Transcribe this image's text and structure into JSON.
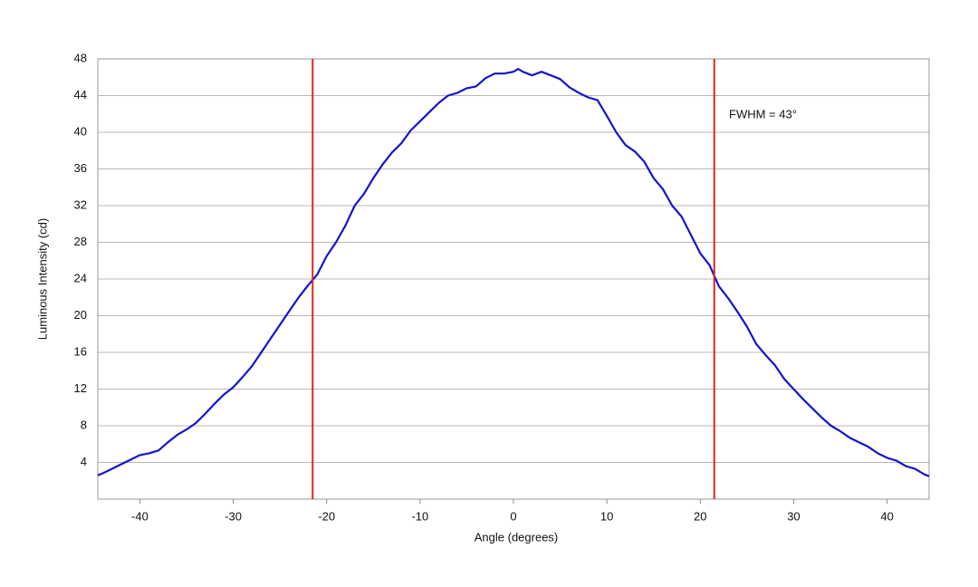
{
  "chart_data": {
    "type": "line",
    "x_label": "Angle (degrees)",
    "y_label": "Luminous Intensity (cd)",
    "annotation": "FWHM = 43°",
    "xlim": [
      -44.5,
      44.5
    ],
    "xticks": [
      -40,
      -30,
      -20,
      -10,
      0,
      10,
      20,
      30,
      40
    ],
    "ylim": [
      0,
      48
    ],
    "yticks": [
      4,
      8,
      12,
      16,
      20,
      24,
      28,
      32,
      36,
      40,
      44,
      48
    ],
    "grid": true,
    "vlines": [
      -21.5,
      21.5
    ],
    "vline_color": "#d42a1e",
    "x": [
      -44.5,
      -44,
      -43,
      -42,
      -41,
      -40,
      -39,
      -38,
      -37,
      -36,
      -35,
      -34,
      -33,
      -32,
      -31,
      -30,
      -29,
      -28,
      -27,
      -26,
      -25,
      -24,
      -23,
      -22,
      -21,
      -20,
      -19,
      -18,
      -17,
      -16,
      -15,
      -14,
      -13,
      -12,
      -11,
      -10,
      -9,
      -8,
      -7,
      -6,
      -5,
      -4,
      -3,
      -2,
      -1,
      0,
      0.5,
      1,
      2,
      3,
      4,
      5,
      6,
      7,
      8,
      9,
      10,
      11,
      12,
      13,
      14,
      15,
      16,
      17,
      18,
      19,
      20,
      21,
      22,
      23,
      24,
      25,
      26,
      27,
      28,
      29,
      30,
      31,
      32,
      33,
      34,
      35,
      36,
      37,
      38,
      39,
      40,
      41,
      42,
      43,
      44,
      44.5
    ],
    "series": [
      {
        "name": "Intensity",
        "color": "#1414cc",
        "values": [
          2.6,
          2.8,
          3.3,
          3.8,
          4.3,
          4.8,
          5.0,
          5.3,
          6.2,
          7.0,
          7.6,
          8.3,
          9.3,
          10.4,
          11.4,
          12.2,
          13.3,
          14.5,
          16.0,
          17.5,
          19.0,
          20.5,
          22.0,
          23.3,
          24.5,
          26.5,
          28.0,
          29.8,
          32.0,
          33.3,
          35.0,
          36.5,
          37.8,
          38.8,
          40.2,
          41.2,
          42.2,
          43.2,
          44.0,
          44.3,
          44.8,
          45.0,
          45.9,
          46.4,
          46.4,
          46.6,
          46.9,
          46.6,
          46.2,
          46.6,
          46.2,
          45.8,
          44.9,
          44.3,
          43.8,
          43.5,
          41.8,
          40.0,
          38.6,
          37.9,
          36.8,
          35.0,
          33.8,
          32.0,
          30.8,
          28.8,
          26.8,
          25.5,
          23.2,
          21.9,
          20.4,
          18.8,
          16.9,
          15.7,
          14.6,
          13.1,
          12.0,
          10.9,
          9.9,
          8.9,
          8.0,
          7.4,
          6.7,
          6.2,
          5.7,
          5.0,
          4.5,
          4.2,
          3.6,
          3.3,
          2.7,
          2.5
        ]
      }
    ]
  }
}
